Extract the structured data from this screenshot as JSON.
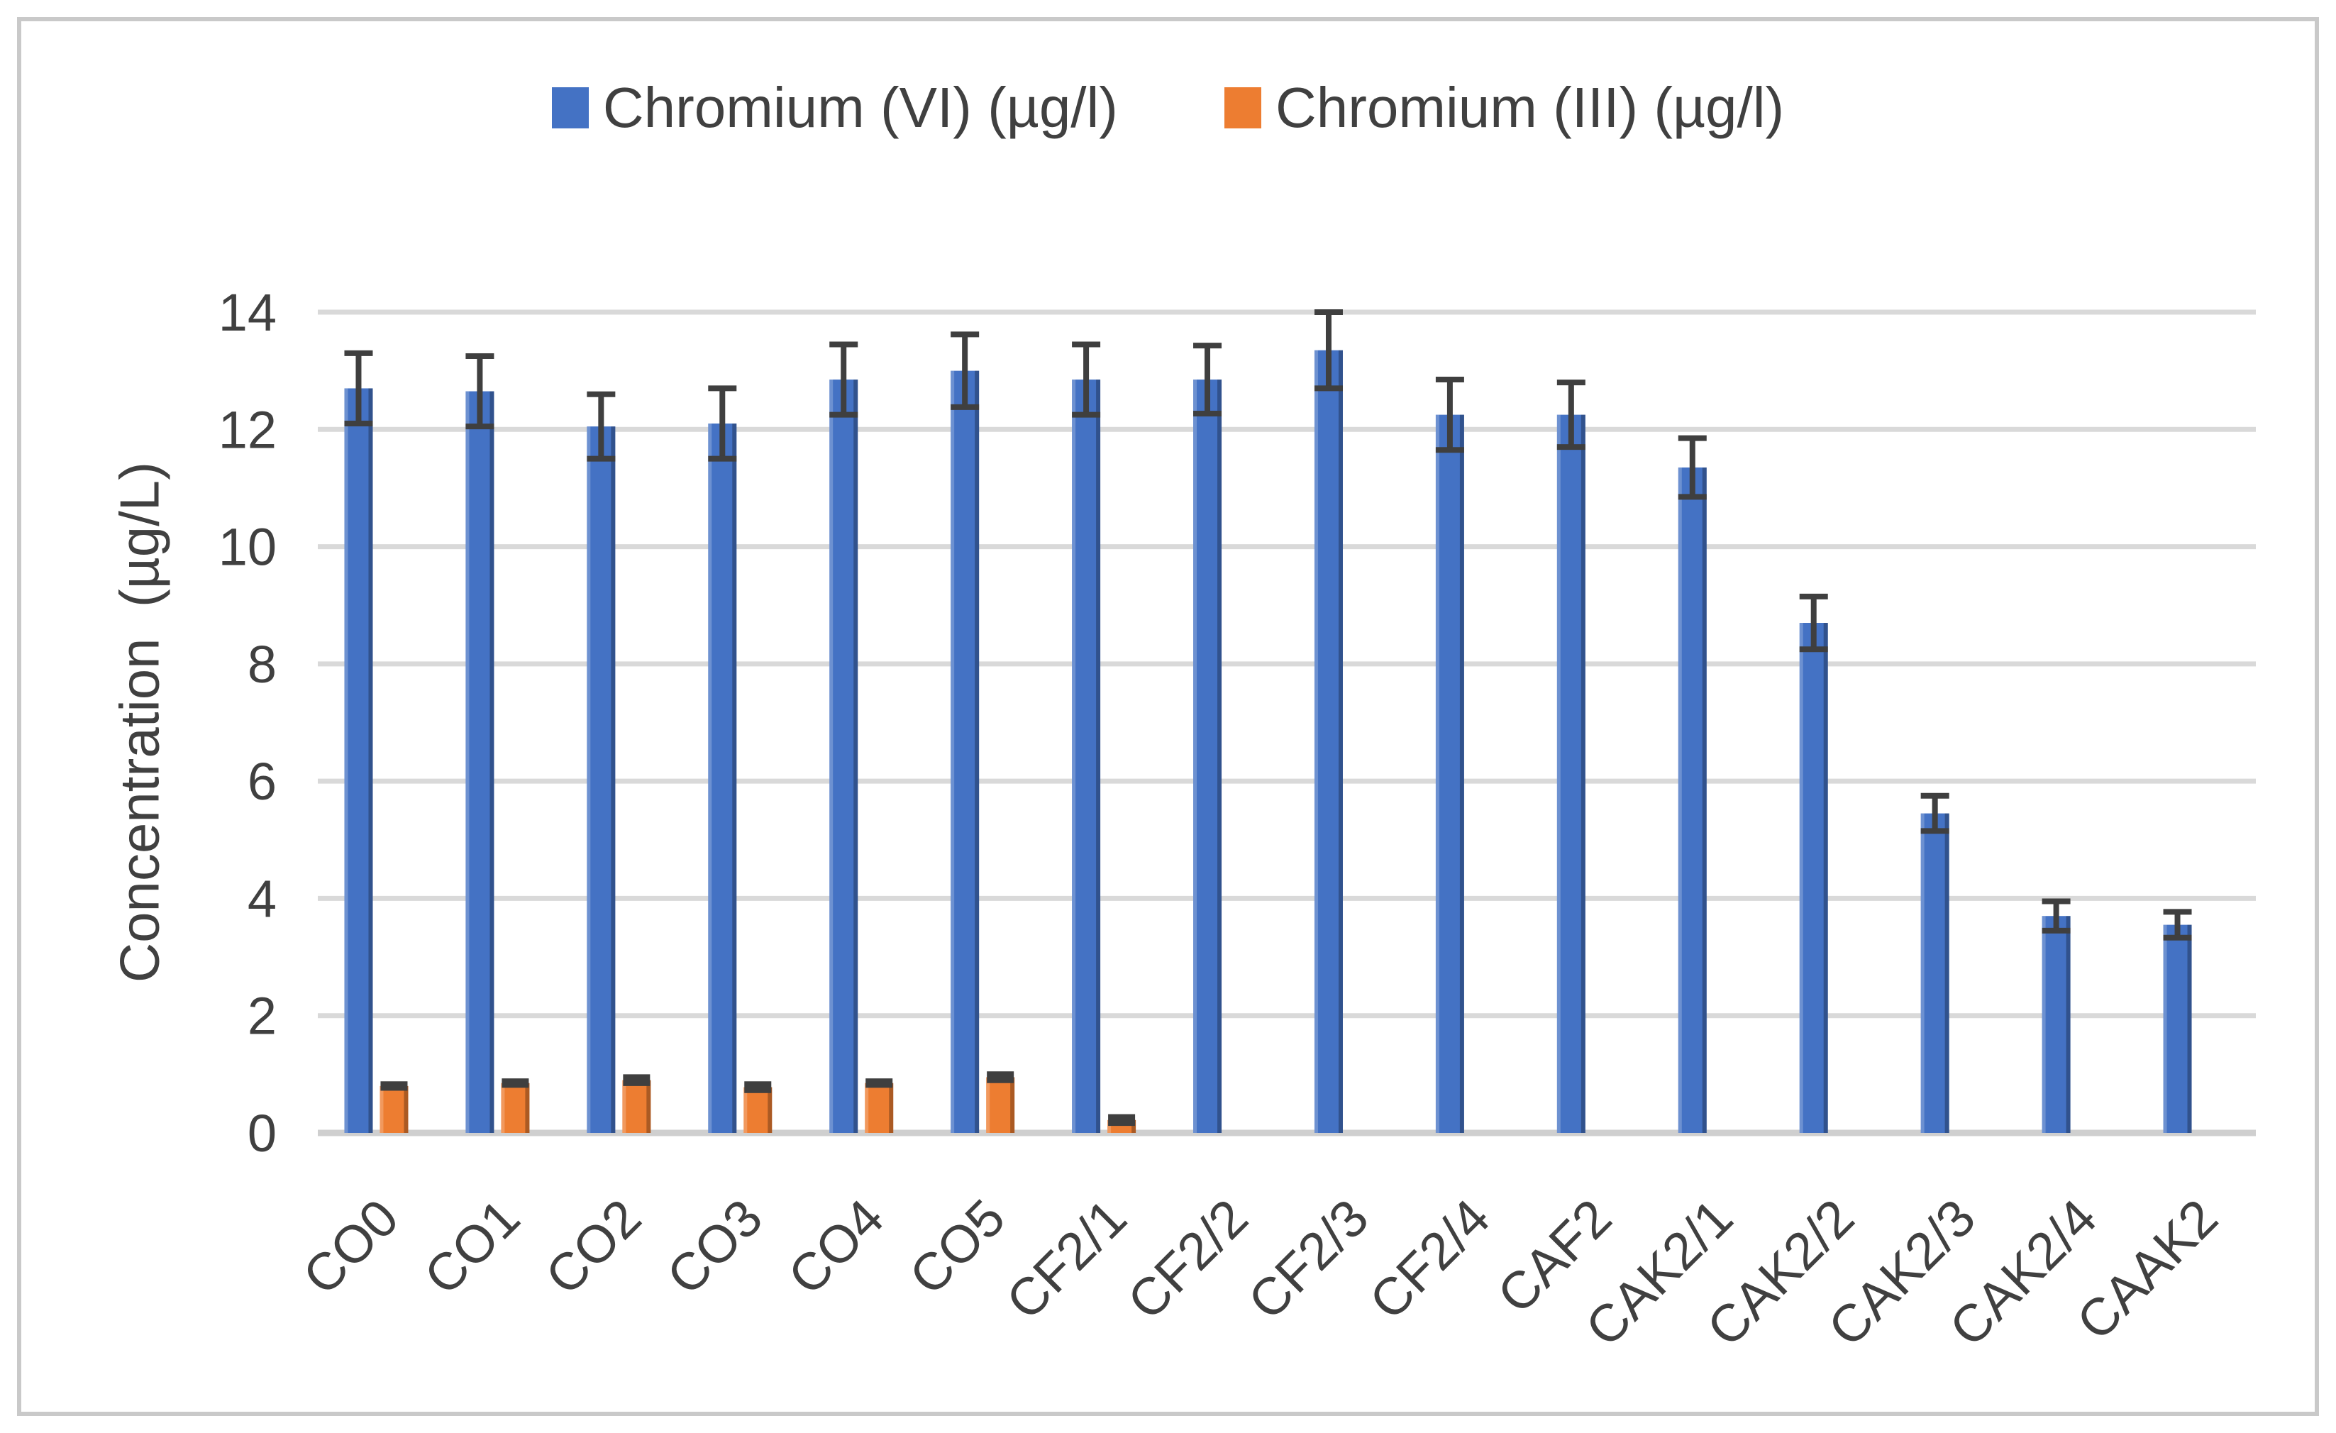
{
  "chart_data": {
    "type": "bar",
    "title": "",
    "categories": [
      "CO0",
      "CO1",
      "CO2",
      "CO3",
      "CO4",
      "CO5",
      "CF2/1",
      "CF2/2",
      "CF2/3",
      "CF2/4",
      "CAF2",
      "CAK2/1",
      "CAK2/2",
      "CAK2/3",
      "CAK2/4",
      "CAAK2"
    ],
    "series": [
      {
        "name": "Chromium (VI) (µg/l)",
        "color": "#4472C4",
        "values": [
          12.7,
          12.65,
          12.05,
          12.1,
          12.85,
          13.0,
          12.85,
          12.85,
          13.35,
          12.25,
          12.25,
          11.35,
          8.7,
          5.45,
          3.7,
          3.55
        ],
        "errors": [
          0.6,
          0.6,
          0.55,
          0.6,
          0.6,
          0.62,
          0.6,
          0.58,
          0.65,
          0.6,
          0.55,
          0.5,
          0.45,
          0.3,
          0.25,
          0.22
        ],
        "error_style": "caps"
      },
      {
        "name": "Chromium (III) (µg/l)",
        "color": "#ED7D31",
        "values": [
          0.8,
          0.85,
          0.9,
          0.78,
          0.85,
          0.95,
          0.22,
          0,
          0,
          0,
          0,
          0,
          0,
          0,
          0,
          0
        ],
        "errors": [
          0.08,
          0.08,
          0.1,
          0.1,
          0.08,
          0.1,
          0.1,
          0,
          0,
          0,
          0,
          0,
          0,
          0,
          0,
          0
        ],
        "error_style": "block"
      }
    ],
    "xlabel": "",
    "ylabel": "Concentration  (µg/L)",
    "ylim": [
      0,
      14
    ],
    "y_ticks": [
      0,
      2,
      4,
      6,
      8,
      10,
      12,
      14
    ],
    "grid": true,
    "legend_position": "top",
    "colors": {
      "grid": "#d9d9d9",
      "baseline": "#cfcfcf",
      "error": "#3f3f3f",
      "text": "#404040",
      "frame": "#c9c9c9",
      "background": "#ffffff"
    }
  }
}
